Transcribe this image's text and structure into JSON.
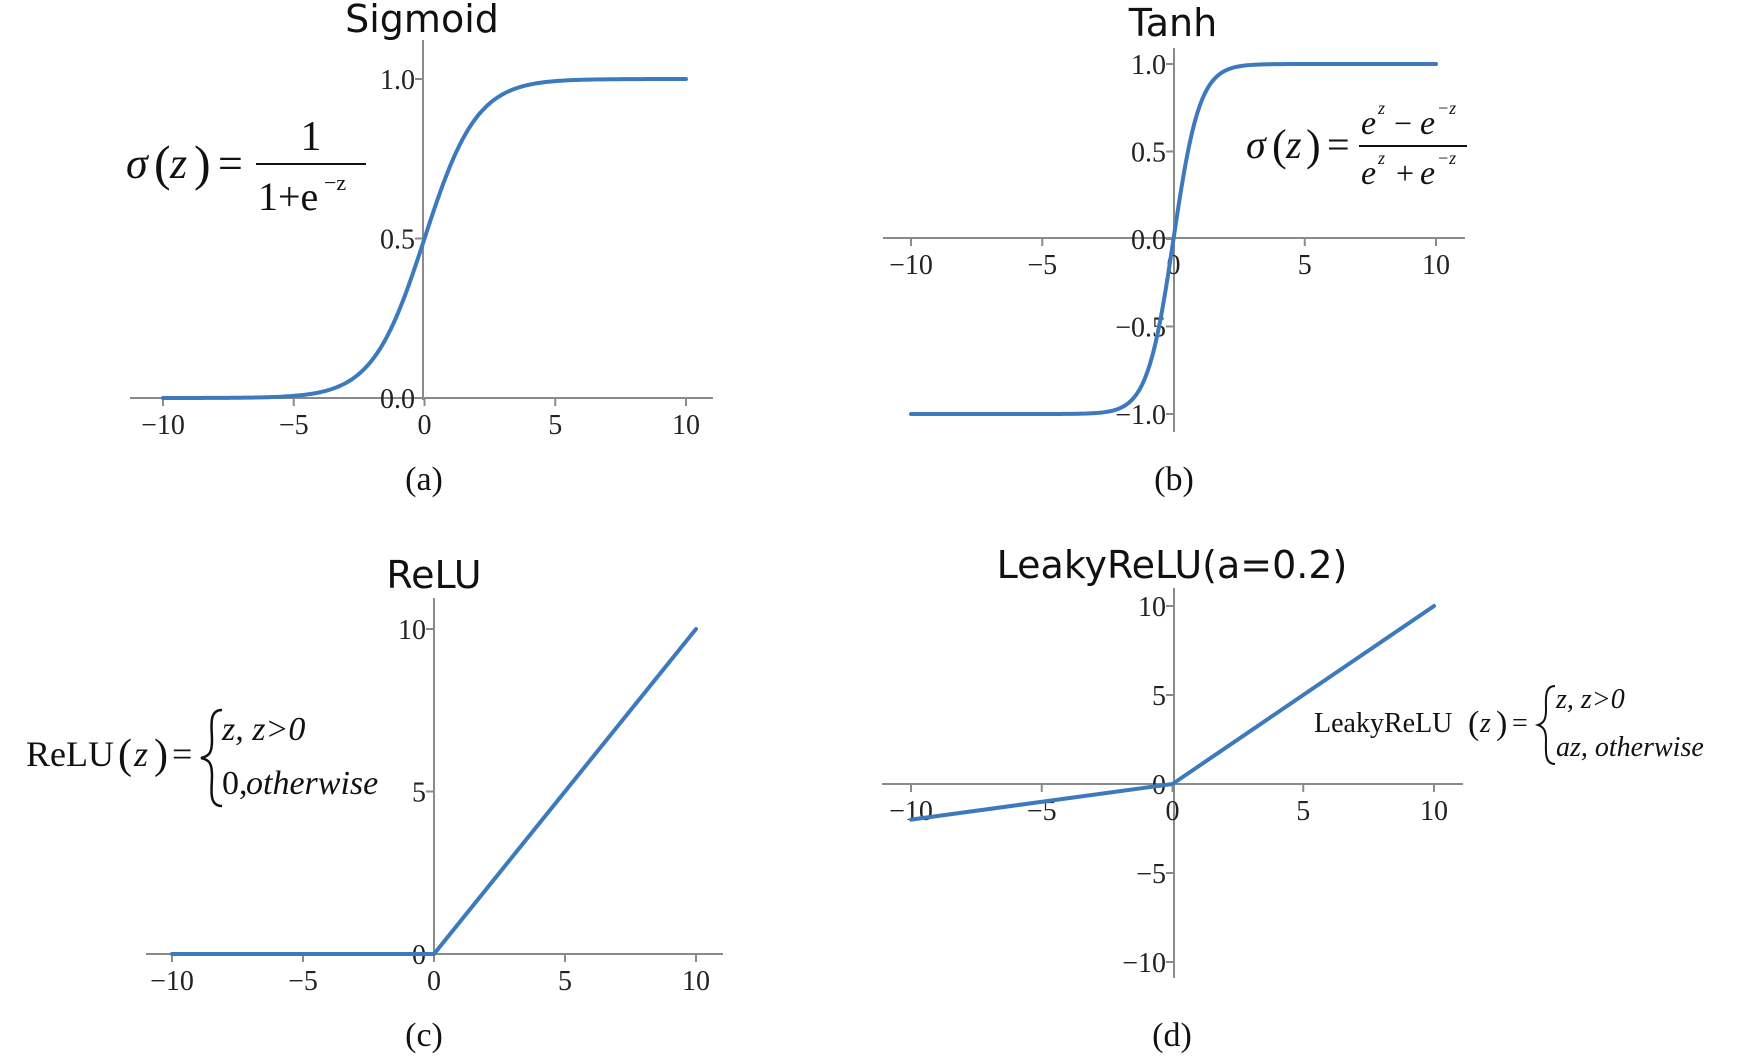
{
  "chart_data": [
    {
      "type": "line",
      "function": "sigmoid",
      "title": "Sigmoid",
      "caption": "(a)",
      "xlim": [
        -10,
        10
      ],
      "ylim": [
        0,
        1
      ],
      "xticks": [
        -10,
        -5,
        0,
        5,
        10
      ],
      "yticks": [
        0.0,
        0.5,
        1.0
      ],
      "xtick_labels": [
        "−10",
        "−5",
        "0",
        "5",
        "10"
      ],
      "ytick_labels": [
        "0.0",
        "0.5",
        "1.0"
      ],
      "x": [
        -10,
        -8,
        -6,
        -4,
        -3,
        -2,
        -1,
        0,
        1,
        2,
        3,
        4,
        6,
        8,
        10
      ],
      "y": [
        5e-05,
        0.0003,
        0.0025,
        0.018,
        0.047,
        0.119,
        0.269,
        0.5,
        0.731,
        0.881,
        0.953,
        0.982,
        0.9975,
        0.9997,
        0.99995
      ],
      "formula": {
        "lhs_fn": "σ",
        "lhs_var": "z",
        "numerator": "1",
        "denominator": "1+e",
        "denominator_exp": "−z"
      }
    },
    {
      "type": "line",
      "function": "tanh",
      "title": "Tanh",
      "caption": "(b)",
      "xlim": [
        -10,
        10
      ],
      "ylim": [
        -1,
        1
      ],
      "xticks": [
        -10,
        -5,
        0,
        5,
        10
      ],
      "yticks": [
        -1.0,
        -0.5,
        0.0,
        0.5,
        1.0
      ],
      "xtick_labels": [
        "−10",
        "−5",
        "0",
        "5",
        "10"
      ],
      "ytick_labels": [
        "−1.0",
        "−0.5",
        "0.0",
        "0.5",
        "1.0"
      ],
      "x": [
        -10,
        -5,
        -3,
        -2,
        -1.5,
        -1,
        -0.5,
        0,
        0.5,
        1,
        1.5,
        2,
        3,
        5,
        10
      ],
      "y": [
        -1.0,
        -0.9999,
        -0.995,
        -0.964,
        -0.905,
        -0.762,
        -0.462,
        0,
        0.462,
        0.762,
        0.905,
        0.964,
        0.995,
        0.9999,
        1.0
      ],
      "formula": {
        "lhs_fn": "σ",
        "lhs_var": "z",
        "num_a": "e",
        "num_a_exp": "z",
        "num_op": "−",
        "num_b": "e",
        "num_b_exp": "−z",
        "den_a": "e",
        "den_a_exp": "z",
        "den_op": "+",
        "den_b": "e",
        "den_b_exp": "−z"
      }
    },
    {
      "type": "line",
      "function": "relu",
      "title": "ReLU",
      "caption": "(c)",
      "xlim": [
        -10,
        10
      ],
      "ylim": [
        0,
        10
      ],
      "xticks": [
        -10,
        -5,
        0,
        5,
        10
      ],
      "yticks": [
        0,
        5,
        10
      ],
      "xtick_labels": [
        "−10",
        "−5",
        "0",
        "5",
        "10"
      ],
      "ytick_labels": [
        "0",
        "5",
        "10"
      ],
      "x": [
        -10,
        0,
        10
      ],
      "y": [
        0,
        0,
        10
      ],
      "formula": {
        "lhs_fn": "ReLU",
        "lhs_var": "z",
        "case1": "z, z>0",
        "case2_num": "0,",
        "case2_word": " otherwise"
      }
    },
    {
      "type": "line",
      "function": "leaky_relu",
      "title": "LeakyReLU(a=0.2)",
      "caption": "(d)",
      "xlim": [
        -10,
        10
      ],
      "ylim": [
        -10,
        10
      ],
      "xticks": [
        -10,
        -5,
        0,
        5,
        10
      ],
      "yticks": [
        -10,
        -5,
        0,
        5,
        10
      ],
      "xtick_labels": [
        "−10",
        "−5",
        "0",
        "5",
        "10"
      ],
      "ytick_labels": [
        "−10",
        "−5",
        "0",
        "5",
        "10"
      ],
      "x": [
        -10,
        0,
        10
      ],
      "y": [
        -2,
        0,
        10
      ],
      "formula": {
        "lhs_fn": "LeakyReLU",
        "lhs_var": "z",
        "case1": "z, z>0",
        "case2": "az, otherwise"
      }
    }
  ],
  "colors": {
    "curve": "#3d79bd",
    "axis": "#8a8a8a"
  }
}
